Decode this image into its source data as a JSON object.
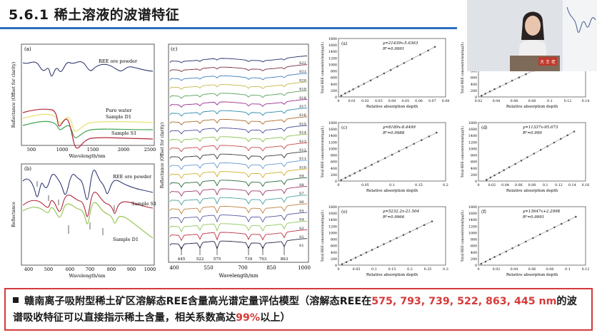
{
  "slide": {
    "title": "5.6.1 稀土溶液的波谱特征"
  },
  "panel_a": {
    "letter": "(a)",
    "ylabel": "Reflectance (Offset for clarity)",
    "xlabel": "Wavelength/nm",
    "xticks": [
      "500",
      "1000",
      "1500",
      "2000",
      "2500"
    ],
    "series_labels": [
      "REE ore powder",
      "Pure water",
      "Sample D1",
      "Sample S1"
    ]
  },
  "panel_b": {
    "letter": "(b)",
    "ylabel": "Reflectance",
    "xlabel": "Wavelength/nm",
    "xticks": [
      "400",
      "500",
      "600",
      "700",
      "800",
      "900",
      "1000"
    ],
    "series_labels": [
      "REE ore powder",
      "Sample S1",
      "Sample D1"
    ]
  },
  "panel_c": {
    "letter": "(c)",
    "ylabel": "Reflectance (Offset for clarity)",
    "xlabel": "Wavelength/nm",
    "xticks": [
      "400",
      "550",
      "700",
      "850",
      "1000"
    ],
    "band_labels": [
      "445",
      "522",
      "575",
      "739",
      "793",
      "863"
    ],
    "sample_labels": [
      "S22",
      "S21",
      "S20",
      "S19",
      "S18",
      "S17",
      "S16",
      "S15",
      "S14",
      "S13",
      "S12",
      "S11",
      "S10",
      "S9",
      "S8",
      "S7",
      "S6",
      "S5",
      "S4",
      "S3",
      "S2",
      "S1"
    ]
  },
  "regressions": [
    {
      "letter": "(a)",
      "equation": "y=21439x-5.6363",
      "r2": "R²=0.9991",
      "ylabel": "Total REE concentration/(μg/L)",
      "xlabel": "Relative absorption depth",
      "yticks": [
        "0",
        "200",
        "400",
        "600",
        "800",
        "1000",
        "1200",
        "1400",
        "1600",
        "1800"
      ],
      "xticks": [
        "0",
        "0.01",
        "0.02",
        "0.03",
        "0.04",
        "0.05",
        "0.06",
        "0.07",
        "0.08"
      ],
      "chart_data": {
        "type": "scatter",
        "x": [
          0.002,
          0.005,
          0.008,
          0.011,
          0.015,
          0.019,
          0.024,
          0.029,
          0.034,
          0.039,
          0.044,
          0.049,
          0.055,
          0.061,
          0.067,
          0.072
        ],
        "y": [
          40,
          110,
          170,
          235,
          320,
          405,
          510,
          615,
          725,
          830,
          940,
          1045,
          1175,
          1305,
          1430,
          1540
        ],
        "xlim": [
          0,
          0.08
        ],
        "ylim": [
          0,
          1800
        ]
      }
    },
    {
      "letter": "",
      "equation": "",
      "r2": "",
      "ylabel": "Total REE concentration/(μg/L)",
      "xlabel": "Relative absorption depth",
      "yticks": [
        "0",
        "200",
        "400",
        "600",
        "800",
        "1000",
        "1200",
        "1400",
        "1600",
        "1800"
      ],
      "xticks": [
        "0.02",
        "0.04",
        "0.06",
        "0.08",
        "0.1",
        "0.12",
        "0.14"
      ],
      "chart_data": {
        "type": "scatter",
        "x": [
          0.004,
          0.009,
          0.015,
          0.021,
          0.028,
          0.036,
          0.044,
          0.053,
          0.062,
          0.072,
          0.082,
          0.092,
          0.102,
          0.112,
          0.122,
          0.132
        ],
        "y": [
          40,
          100,
          170,
          240,
          320,
          410,
          505,
          600,
          700,
          810,
          920,
          1030,
          1140,
          1260,
          1380,
          1500
        ],
        "xlim": [
          0,
          0.14
        ],
        "ylim": [
          0,
          1800
        ]
      }
    },
    {
      "letter": "(c)",
      "equation": "y=8189x-8.4499",
      "r2": "R²=0.9988",
      "ylabel": "Total REE concentration/(μg/L)",
      "xlabel": "Relative absorption depth",
      "yticks": [
        "0",
        "200",
        "400",
        "600",
        "800",
        "1000",
        "1200",
        "1400",
        "1600",
        "1800"
      ],
      "xticks": [
        "0",
        "0.05",
        "0.1",
        "0.15",
        "0.2"
      ],
      "chart_data": {
        "type": "scatter",
        "x": [
          0.005,
          0.013,
          0.021,
          0.03,
          0.04,
          0.05,
          0.062,
          0.074,
          0.087,
          0.1,
          0.113,
          0.127,
          0.141,
          0.155,
          0.169,
          0.183
        ],
        "y": [
          35,
          100,
          165,
          240,
          320,
          400,
          500,
          600,
          705,
          810,
          920,
          1030,
          1145,
          1260,
          1375,
          1490
        ],
        "xlim": [
          0,
          0.2
        ],
        "ylim": [
          0,
          1800
        ]
      }
    },
    {
      "letter": "(d)",
      "equation": "y=11337x-95.673",
      "r2": "R²=0.999",
      "ylabel": "Total REE concentration/(μg/L)",
      "xlabel": "Relative absorption depth",
      "yticks": [
        "0",
        "200",
        "400",
        "600",
        "800",
        "1000",
        "1200",
        "1400",
        "1600",
        "1800"
      ],
      "xticks": [
        "0",
        "0.02",
        "0.04",
        "0.06",
        "0.08",
        "0.1",
        "0.12",
        "0.14",
        "0.16"
      ],
      "chart_data": {
        "type": "scatter",
        "x": [
          0.012,
          0.018,
          0.024,
          0.031,
          0.038,
          0.046,
          0.055,
          0.064,
          0.073,
          0.083,
          0.093,
          0.103,
          0.113,
          0.123,
          0.133,
          0.143
        ],
        "y": [
          40,
          110,
          175,
          255,
          335,
          425,
          525,
          630,
          735,
          845,
          960,
          1070,
          1185,
          1300,
          1410,
          1525
        ],
        "xlim": [
          0,
          0.16
        ],
        "ylim": [
          0,
          1800
        ]
      }
    },
    {
      "letter": "(e)",
      "equation": "y=5232.2x-21.504",
      "r2": "R²=0.9966",
      "ylabel": "Total REE concentration/(μg/L)",
      "xlabel": "Relative absorption depth",
      "yticks": [
        "0",
        "200",
        "400",
        "600",
        "800",
        "1000",
        "1200",
        "1400",
        "1600",
        "1800"
      ],
      "xticks": [
        "0",
        "0.05",
        "0.1",
        "0.15",
        "0.2",
        "0.25",
        "0.3"
      ],
      "chart_data": {
        "type": "scatter",
        "x": [
          0.01,
          0.022,
          0.035,
          0.048,
          0.063,
          0.078,
          0.094,
          0.11,
          0.127,
          0.145,
          0.163,
          0.182,
          0.2,
          0.22,
          0.24,
          0.262
        ],
        "y": [
          30,
          95,
          160,
          230,
          310,
          390,
          470,
          555,
          645,
          740,
          835,
          930,
          1025,
          1130,
          1235,
          1350
        ],
        "xlim": [
          0,
          0.3
        ],
        "ylim": [
          0,
          1800
        ]
      }
    },
    {
      "letter": "(f)",
      "equation": "y=13647x+2.2998",
      "r2": "R²=0.9991",
      "ylabel": "Total REE concentration/(μg/L)",
      "xlabel": "Relative absorption depth",
      "yticks": [
        "0",
        "200",
        "400",
        "600",
        "800",
        "1000",
        "1200",
        "1400",
        "1600",
        "1800"
      ],
      "xticks": [
        "0",
        "0.02",
        "0.04",
        "0.06",
        "0.08",
        "0.1",
        "0.12"
      ],
      "chart_data": {
        "type": "scatter",
        "x": [
          0.003,
          0.008,
          0.013,
          0.018,
          0.024,
          0.031,
          0.038,
          0.045,
          0.053,
          0.061,
          0.069,
          0.077,
          0.085,
          0.093,
          0.101,
          0.109
        ],
        "y": [
          45,
          110,
          180,
          250,
          330,
          420,
          520,
          615,
          725,
          835,
          945,
          1055,
          1165,
          1270,
          1380,
          1490
        ],
        "xlim": [
          0,
          0.12
        ],
        "ylim": [
          0,
          1800
        ]
      }
    }
  ],
  "caption": {
    "part1": "赣南离子吸附型稀土矿区溶解态REE含量高光谱定量评估模型（溶解态REE在",
    "highlight1": "575, 793, 739, 522, 863, 445 nm",
    "part2": "的波谱吸收特征可以直接指示稀土含量，相关系数高达",
    "highlight2": "99%",
    "part3": "以上）"
  },
  "video": {
    "nameplate": "大 王 老"
  },
  "colors": {
    "accent_blue": "#2f6fbf",
    "caption_red": "#d63a3a"
  }
}
